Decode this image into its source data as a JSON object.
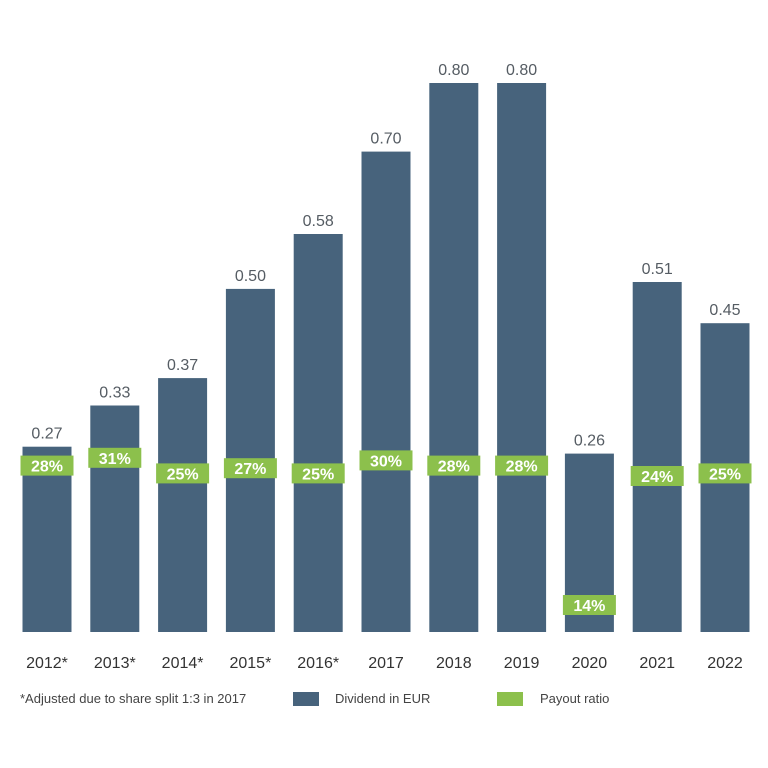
{
  "chart_data": {
    "type": "bar",
    "categories": [
      "2012*",
      "2013*",
      "2014*",
      "2015*",
      "2016*",
      "2017",
      "2018",
      "2019",
      "2020",
      "2021",
      "2022"
    ],
    "series": [
      {
        "name": "Dividend in EUR",
        "values": [
          0.27,
          0.33,
          0.37,
          0.5,
          0.58,
          0.7,
          0.8,
          0.8,
          0.26,
          0.51,
          0.45
        ],
        "value_labels": [
          "0.27",
          "0.33",
          "0.37",
          "0.50",
          "0.58",
          "0.70",
          "0.80",
          "0.80",
          "0.26",
          "0.51",
          "0.45"
        ],
        "color": "#47637c"
      },
      {
        "name": "Payout ratio",
        "values": [
          28,
          31,
          25,
          27,
          25,
          30,
          28,
          28,
          14,
          24,
          25
        ],
        "value_labels": [
          "28%",
          "31%",
          "25%",
          "27%",
          "25%",
          "30%",
          "28%",
          "28%",
          "14%",
          "24%",
          "25%"
        ],
        "color": "#8cc04c"
      }
    ],
    "ylim": [
      0,
      0.86
    ],
    "footnote": "*Adjusted due to share split 1:3 in 2017",
    "legend": {
      "dividend_label": "Dividend in EUR",
      "payout_label": "Payout ratio",
      "placement": "bottom"
    },
    "grid": false
  }
}
